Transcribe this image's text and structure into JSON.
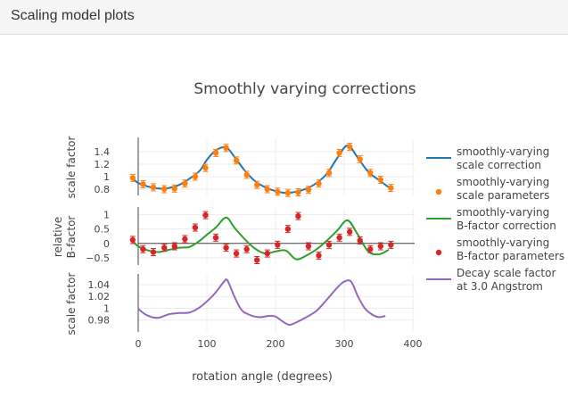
{
  "panel": {
    "title": "Scaling model plots"
  },
  "chart_data": {
    "type": "line",
    "title": "Smoothly varying corrections",
    "xlabel": "rotation angle (degrees)",
    "xlim": [
      -15,
      405
    ],
    "x_ticks": [
      0,
      100,
      200,
      300,
      400
    ],
    "legend_position": "right",
    "subplots": [
      {
        "ylabel": [
          "scale factor"
        ],
        "ylim": [
          0.7,
          1.6
        ],
        "y_ticks": [
          0.8,
          1,
          1.2,
          1.4
        ],
        "y_tick_labels": [
          "0.8",
          "1",
          "1.2",
          "1.4"
        ],
        "series": [
          {
            "name": "smoothly-varying scale correction",
            "kind": "line",
            "color": "#1f77b4",
            "x": [
              -8,
              0,
              15,
              30,
              45,
              60,
              75,
              90,
              100,
              113,
              128,
              140,
              155,
              170,
              185,
              200,
              215,
              230,
              245,
              260,
              275,
              290,
              305,
              320,
              335,
              350,
              365
            ],
            "y": [
              0.97,
              0.9,
              0.84,
              0.81,
              0.82,
              0.87,
              0.97,
              1.1,
              1.27,
              1.42,
              1.47,
              1.32,
              1.1,
              0.93,
              0.83,
              0.77,
              0.74,
              0.76,
              0.81,
              0.9,
              1.05,
              1.3,
              1.5,
              1.3,
              1.08,
              0.95,
              0.83
            ]
          },
          {
            "name": "smoothly-varying scale parameters",
            "kind": "markers",
            "color": "#ff7f0e",
            "x": [
              -8,
              7,
              22,
              38,
              53,
              68,
              83,
              98,
              113,
              128,
              143,
              158,
              173,
              188,
              203,
              218,
              233,
              248,
              263,
              278,
              293,
              308,
              323,
              338,
              353,
              368
            ],
            "y": [
              0.98,
              0.88,
              0.83,
              0.8,
              0.81,
              0.89,
              1.0,
              1.14,
              1.38,
              1.46,
              1.26,
              1.03,
              0.87,
              0.8,
              0.76,
              0.74,
              0.75,
              0.79,
              0.89,
              1.06,
              1.38,
              1.48,
              1.28,
              1.06,
              0.95,
              0.82
            ]
          }
        ]
      },
      {
        "ylabel": [
          "relative",
          "B-factor"
        ],
        "ylim": [
          -0.75,
          1.2
        ],
        "y_ticks": [
          -0.5,
          0,
          0.5,
          1
        ],
        "y_tick_labels": [
          "−0.5",
          "0",
          "0.5",
          "1"
        ],
        "series": [
          {
            "name": "smoothly-varying B-factor correction",
            "kind": "line",
            "color": "#2ca02c",
            "x": [
              -8,
              0,
              15,
              30,
              45,
              60,
              75,
              90,
              100,
              113,
              128,
              140,
              155,
              170,
              185,
              200,
              215,
              230,
              245,
              260,
              275,
              290,
              305,
              320,
              335,
              350,
              365
            ],
            "y": [
              0.08,
              -0.1,
              -0.25,
              -0.3,
              -0.22,
              -0.15,
              -0.12,
              0.1,
              0.3,
              0.55,
              0.9,
              0.55,
              0.15,
              -0.18,
              -0.35,
              -0.28,
              -0.25,
              -0.55,
              -0.42,
              -0.2,
              0.1,
              0.45,
              0.8,
              0.3,
              -0.28,
              -0.38,
              -0.22
            ]
          },
          {
            "name": "smoothly-varying B-factor parameters",
            "kind": "markers",
            "color": "#d62728",
            "x": [
              -8,
              7,
              22,
              38,
              53,
              68,
              83,
              98,
              113,
              128,
              143,
              158,
              173,
              188,
              203,
              218,
              233,
              248,
              263,
              278,
              293,
              308,
              323,
              338,
              353,
              368
            ],
            "y": [
              0.12,
              -0.2,
              -0.3,
              -0.15,
              -0.1,
              0.15,
              0.55,
              0.98,
              0.2,
              -0.15,
              -0.35,
              -0.2,
              -0.58,
              -0.35,
              -0.05,
              0.5,
              0.95,
              -0.1,
              -0.42,
              -0.05,
              0.2,
              0.4,
              0.1,
              -0.2,
              -0.1,
              -0.05
            ]
          }
        ]
      },
      {
        "ylabel": [
          "scale factor"
        ],
        "ylim": [
          0.96,
          1.055
        ],
        "y_ticks": [
          0.98,
          1,
          1.02,
          1.04
        ],
        "y_tick_labels": [
          "0.98",
          "1",
          "1.02",
          "1.04"
        ],
        "series": [
          {
            "name": "Decay scale factor at 3.0 Angstrom",
            "kind": "line",
            "color": "#9467bd",
            "x": [
              0,
              10,
              20,
              30,
              45,
              60,
              75,
              90,
              105,
              115,
              125,
              130,
              140,
              150,
              160,
              175,
              190,
              200,
              210,
              220,
              230,
              245,
              260,
              275,
              290,
              300,
              310,
              320,
              330,
              340,
              350,
              360
            ],
            "y": [
              0.999,
              0.99,
              0.985,
              0.984,
              0.99,
              0.992,
              0.993,
              1.002,
              1.017,
              1.03,
              1.045,
              1.047,
              1.02,
              0.998,
              0.99,
              0.985,
              0.987,
              0.986,
              0.978,
              0.972,
              0.976,
              0.985,
              0.996,
              1.015,
              1.035,
              1.045,
              1.045,
              1.02,
              1.0,
              0.99,
              0.985,
              0.987
            ]
          }
        ]
      }
    ],
    "legend": [
      {
        "label": [
          "smoothly-varying",
          "scale correction"
        ],
        "kind": "line",
        "color": "#1f77b4"
      },
      {
        "label": [
          "smoothly-varying",
          "scale parameters"
        ],
        "kind": "marker",
        "color": "#ff7f0e"
      },
      {
        "label": [
          "smoothly-varying",
          "B-factor correction"
        ],
        "kind": "line",
        "color": "#2ca02c"
      },
      {
        "label": [
          "smoothly-varying",
          "B-factor parameters"
        ],
        "kind": "marker",
        "color": "#d62728"
      },
      {
        "label": [
          "Decay scale factor",
          "at 3.0 Angstrom"
        ],
        "kind": "line",
        "color": "#9467bd"
      }
    ]
  }
}
